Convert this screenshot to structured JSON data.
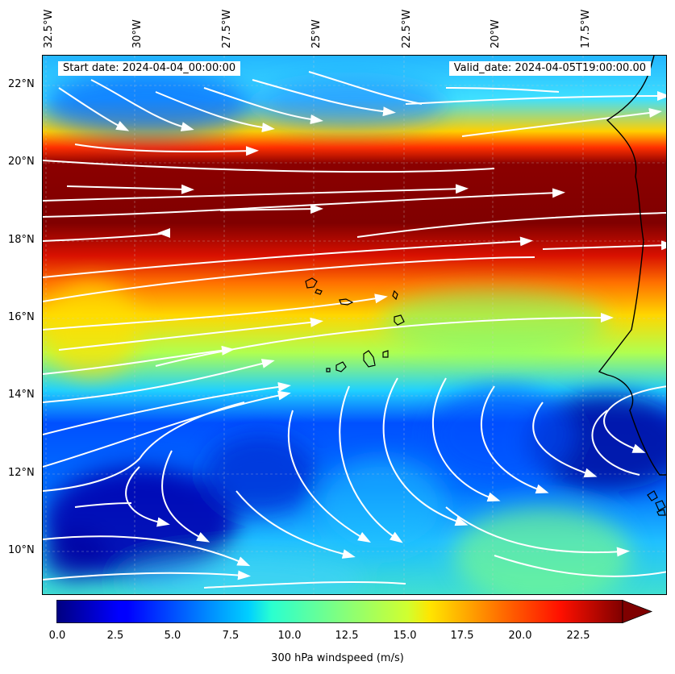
{
  "header": {
    "start_date": "Start date: 2024-04-04_00:00:00",
    "valid_date": "Valid_date: 2024-04-05T19:00:00.00"
  },
  "axes": {
    "lon_labels": [
      "32.5°W",
      "30°W",
      "27.5°W",
      "25°W",
      "22.5°W",
      "20°W",
      "17.5°W"
    ],
    "lon_values": [
      -32.5,
      -30,
      -27.5,
      -25,
      -22.5,
      -20,
      -17.5
    ],
    "lat_labels": [
      "22°N",
      "20°N",
      "18°N",
      "16°N",
      "14°N",
      "12°N",
      "10°N"
    ],
    "lat_values": [
      22,
      20,
      18,
      16,
      14,
      12,
      10
    ],
    "lon_range": [
      -32.5,
      -15.0
    ],
    "lat_range": [
      8.85,
      22.7
    ]
  },
  "colorbar": {
    "title": "300 hPa windspeed (m/s)",
    "ticks": [
      "0.0",
      "2.5",
      "5.0",
      "7.5",
      "10.0",
      "12.5",
      "15.0",
      "17.5",
      "20.0",
      "22.5"
    ],
    "min": 0,
    "max": 24.5,
    "extend": "max",
    "colormap": "jet"
  },
  "colors": {
    "streamline": "#ffffff",
    "coastline": "#000000"
  }
}
